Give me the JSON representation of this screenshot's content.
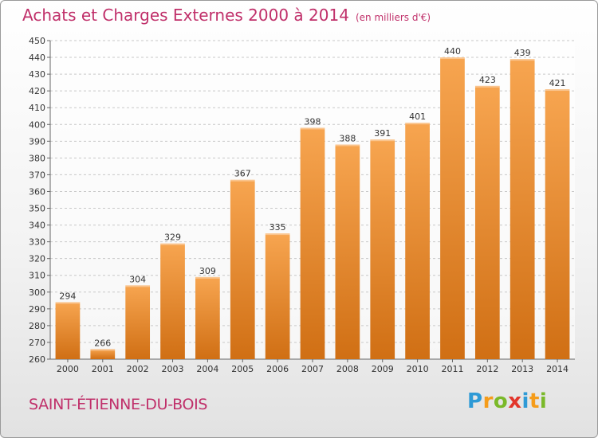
{
  "header": {
    "title": "Achats et Charges Externes 2000 à 2014",
    "unit": "(en milliers d'€)"
  },
  "footer": {
    "town": "SAINT-ÉTIENNE-DU-BOIS",
    "brand_letters": [
      "P",
      "r",
      "o",
      "x",
      "i",
      "t",
      "i"
    ],
    "brand_colors": [
      "#2e9ad6",
      "#f59c1a",
      "#7ab929",
      "#e2362b",
      "#2e9ad6",
      "#f59c1a",
      "#7ab929"
    ]
  },
  "chart_data": {
    "type": "bar",
    "title": "Achats et Charges Externes 2000 à 2014",
    "subtitle": "(en milliers d'€)",
    "xlabel": "",
    "ylabel": "",
    "categories": [
      "2000",
      "2001",
      "2002",
      "2003",
      "2004",
      "2005",
      "2006",
      "2007",
      "2008",
      "2009",
      "2010",
      "2011",
      "2012",
      "2013",
      "2014"
    ],
    "values": [
      294,
      266,
      304,
      329,
      309,
      367,
      335,
      398,
      388,
      391,
      401,
      440,
      423,
      439,
      421
    ],
    "ylim": [
      260,
      450
    ],
    "yticks": [
      260,
      270,
      280,
      290,
      300,
      310,
      320,
      330,
      340,
      350,
      360,
      370,
      380,
      390,
      400,
      410,
      420,
      430,
      440,
      450
    ],
    "grid": true,
    "legend": "none",
    "bar_color_top": "#f7a550",
    "bar_color_bottom": "#d06f14"
  }
}
